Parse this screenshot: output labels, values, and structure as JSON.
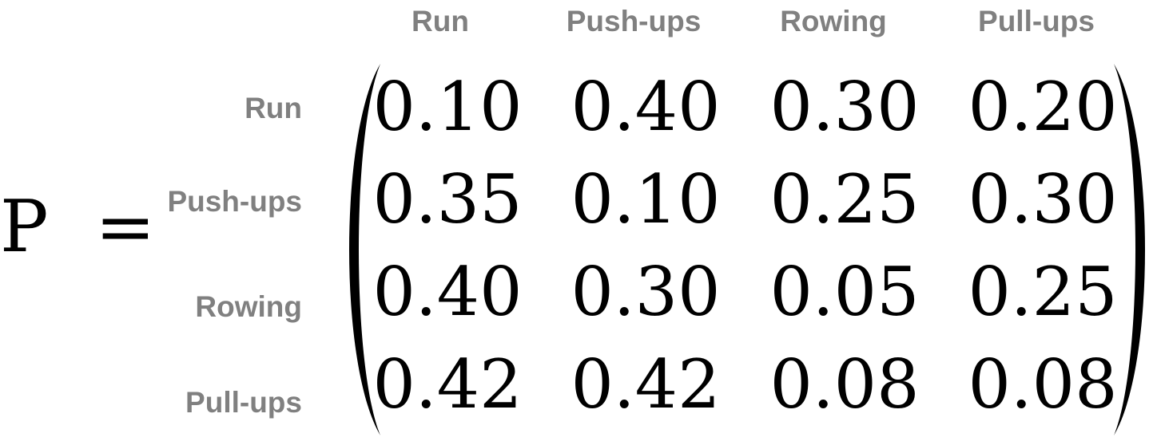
{
  "symbol": "P",
  "equals": "=",
  "column_labels": [
    "Run",
    "Push-ups",
    "Rowing",
    "Pull-ups"
  ],
  "row_labels": [
    "Run",
    "Push-ups",
    "Rowing",
    "Pull-ups"
  ],
  "matrix": [
    [
      "0.10",
      "0.40",
      "0.30",
      "0.20"
    ],
    [
      "0.35",
      "0.10",
      "0.25",
      "0.30"
    ],
    [
      "0.40",
      "0.30",
      "0.05",
      "0.25"
    ],
    [
      "0.42",
      "0.42",
      "0.08",
      "0.08"
    ]
  ],
  "colors": {
    "label": "#808080",
    "entry": "#000000"
  }
}
